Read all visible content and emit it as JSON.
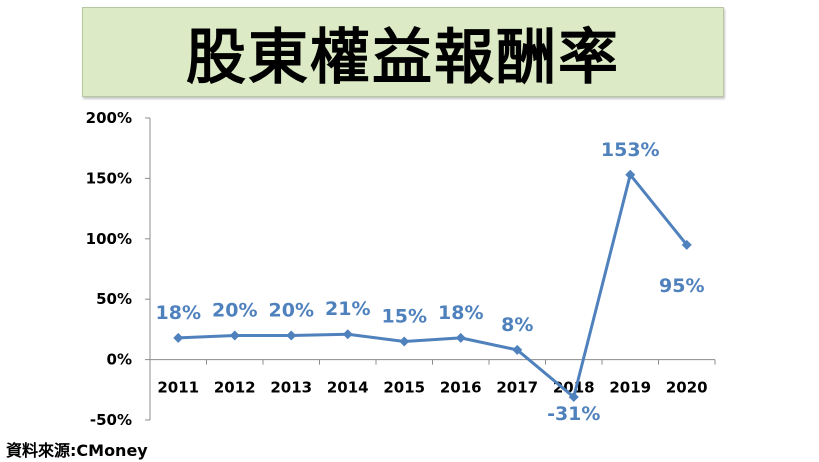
{
  "chart_data": {
    "type": "line",
    "title": "股東權益報酬率",
    "categories": [
      "2011",
      "2012",
      "2013",
      "2014",
      "2015",
      "2016",
      "2017",
      "2018",
      "2019",
      "2020"
    ],
    "series": [
      {
        "values": [
          18,
          20,
          20,
          21,
          15,
          18,
          8,
          -31,
          153,
          95
        ],
        "labels": [
          "18%",
          "20%",
          "20%",
          "21%",
          "15%",
          "18%",
          "8%",
          "-31%",
          "153%",
          "95%"
        ]
      }
    ],
    "ylim": [
      -50,
      200
    ],
    "yticks": [
      200,
      150,
      100,
      50,
      0,
      -50
    ],
    "ytick_labels": [
      "200%",
      "150%",
      "100%",
      "50%",
      "0%",
      "-50%"
    ],
    "grid": false,
    "legend": "none",
    "series_color": "#4f81bd"
  },
  "source": "資料來源:CMoney"
}
